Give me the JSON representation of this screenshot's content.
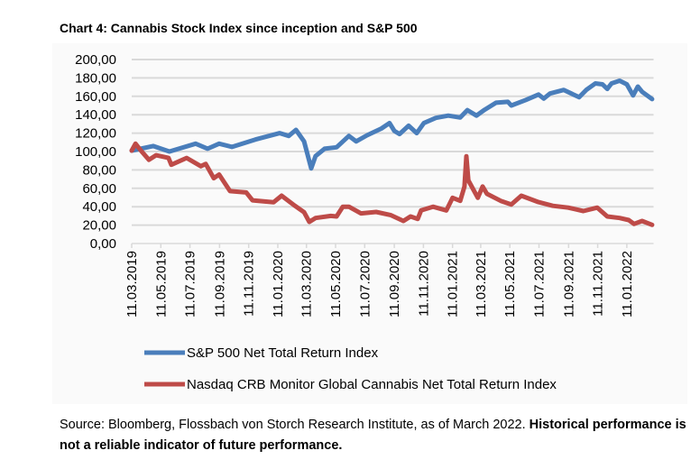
{
  "chart_data": {
    "type": "line",
    "title": "Chart 4: Cannabis Stock Index since inception and S&P 500",
    "xlabel": "",
    "ylabel": "",
    "ylim": [
      0,
      200
    ],
    "yticks": [
      "0,00",
      "20,00",
      "40,00",
      "60,00",
      "80,00",
      "100,00",
      "120,00",
      "140,00",
      "160,00",
      "180,00",
      "200,00"
    ],
    "xlim": [
      "2019-03-11",
      "2022-03-08"
    ],
    "xticks": [
      "11.03.2019",
      "11.05.2019",
      "11.07.2019",
      "11.09.2019",
      "11.11.2019",
      "11.01.2020",
      "11.03.2020",
      "11.05.2020",
      "11.07.2020",
      "11.09.2020",
      "11.11.2020",
      "11.01.2021",
      "11.03.2021",
      "11.05.2021",
      "11.07.2021",
      "11.09.2021",
      "11.11.2021",
      "11.01.2022"
    ],
    "grid": "horizontal",
    "legend": "bottom",
    "series": [
      {
        "name": "S&P 500 Net Total Return Index",
        "color": "#4a7ebb",
        "points": [
          [
            "2019-03-11",
            101
          ],
          [
            "2019-04-25",
            106
          ],
          [
            "2019-05-29",
            100
          ],
          [
            "2019-07-23",
            108.5
          ],
          [
            "2019-08-17",
            103
          ],
          [
            "2019-09-10",
            108.5
          ],
          [
            "2019-10-07",
            105
          ],
          [
            "2019-11-25",
            113
          ],
          [
            "2020-01-15",
            120
          ],
          [
            "2020-02-03",
            117
          ],
          [
            "2020-02-18",
            123.5
          ],
          [
            "2020-03-06",
            111
          ],
          [
            "2020-03-21",
            81.7
          ],
          [
            "2020-03-30",
            95
          ],
          [
            "2020-04-18",
            103
          ],
          [
            "2020-05-13",
            104.6
          ],
          [
            "2020-06-08",
            117
          ],
          [
            "2020-06-23",
            111
          ],
          [
            "2020-07-16",
            117.6
          ],
          [
            "2020-08-15",
            125
          ],
          [
            "2020-09-01",
            131
          ],
          [
            "2020-09-11",
            122.5
          ],
          [
            "2020-09-22",
            119
          ],
          [
            "2020-10-11",
            128
          ],
          [
            "2020-10-28",
            120
          ],
          [
            "2020-11-12",
            131
          ],
          [
            "2020-12-07",
            136.6
          ],
          [
            "2021-01-02",
            139
          ],
          [
            "2021-01-27",
            137
          ],
          [
            "2021-02-11",
            145
          ],
          [
            "2021-03-02",
            139
          ],
          [
            "2021-03-19",
            145.4
          ],
          [
            "2021-04-12",
            153
          ],
          [
            "2021-05-07",
            154
          ],
          [
            "2021-05-14",
            150
          ],
          [
            "2021-06-13",
            156
          ],
          [
            "2021-07-10",
            162
          ],
          [
            "2021-07-21",
            157.5
          ],
          [
            "2021-08-03",
            163
          ],
          [
            "2021-09-01",
            167
          ],
          [
            "2021-10-03",
            159
          ],
          [
            "2021-10-18",
            167
          ],
          [
            "2021-11-06",
            174
          ],
          [
            "2021-11-21",
            173
          ],
          [
            "2021-12-01",
            168
          ],
          [
            "2021-12-10",
            174
          ],
          [
            "2021-12-27",
            177
          ],
          [
            "2022-01-11",
            173
          ],
          [
            "2022-01-24",
            161
          ],
          [
            "2022-02-03",
            170.6
          ],
          [
            "2022-02-12",
            165
          ],
          [
            "2022-02-23",
            160.8
          ],
          [
            "2022-03-05",
            157
          ]
        ]
      },
      {
        "name": "Nasdaq CRB Monitor Global Cannabis Net Total Return Index",
        "color": "#be4b48",
        "points": [
          [
            "2019-03-11",
            101
          ],
          [
            "2019-03-19",
            108.5
          ],
          [
            "2019-04-01",
            100
          ],
          [
            "2019-04-16",
            91
          ],
          [
            "2019-05-01",
            96
          ],
          [
            "2019-05-27",
            93
          ],
          [
            "2019-06-02",
            85.6
          ],
          [
            "2019-07-04",
            93
          ],
          [
            "2019-08-03",
            84
          ],
          [
            "2019-08-13",
            86.6
          ],
          [
            "2019-08-30",
            71
          ],
          [
            "2019-09-10",
            75
          ],
          [
            "2019-10-03",
            57
          ],
          [
            "2019-11-06",
            55.5
          ],
          [
            "2019-11-19",
            47
          ],
          [
            "2020-01-02",
            44.8
          ],
          [
            "2020-01-19",
            52
          ],
          [
            "2020-02-16",
            41
          ],
          [
            "2020-03-06",
            34
          ],
          [
            "2020-03-17",
            23.5
          ],
          [
            "2020-03-30",
            27.7
          ],
          [
            "2020-05-01",
            30
          ],
          [
            "2020-05-13",
            29.4
          ],
          [
            "2020-05-26",
            40
          ],
          [
            "2020-06-08",
            40
          ],
          [
            "2020-07-03",
            32.7
          ],
          [
            "2020-08-04",
            34.3
          ],
          [
            "2020-09-03",
            31
          ],
          [
            "2020-09-30",
            24.5
          ],
          [
            "2020-10-15",
            29.4
          ],
          [
            "2020-10-30",
            26.8
          ],
          [
            "2020-11-06",
            36
          ],
          [
            "2020-12-01",
            40
          ],
          [
            "2020-12-29",
            36
          ],
          [
            "2021-01-11",
            49.7
          ],
          [
            "2021-01-27",
            46.4
          ],
          [
            "2021-02-05",
            62
          ],
          [
            "2021-02-09",
            94.8
          ],
          [
            "2021-02-13",
            68.6
          ],
          [
            "2021-03-05",
            49.7
          ],
          [
            "2021-03-15",
            62
          ],
          [
            "2021-03-24",
            54
          ],
          [
            "2021-04-22",
            46.4
          ],
          [
            "2021-05-14",
            42.5
          ],
          [
            "2021-06-04",
            52
          ],
          [
            "2021-07-10",
            45
          ],
          [
            "2021-08-09",
            41
          ],
          [
            "2021-09-10",
            39
          ],
          [
            "2021-10-12",
            35.3
          ],
          [
            "2021-11-10",
            39
          ],
          [
            "2021-12-01",
            29.4
          ],
          [
            "2021-12-27",
            27.7
          ],
          [
            "2022-01-15",
            25.5
          ],
          [
            "2022-01-26",
            21.3
          ],
          [
            "2022-02-12",
            24.5
          ],
          [
            "2022-03-05",
            20.3
          ]
        ]
      }
    ]
  },
  "source": {
    "text": "Source: Bloomberg, Flossbach von Storch Research Institute, as of March 2022. ",
    "emphasis": "Historical performance is not a reliable indicator of future performance."
  }
}
